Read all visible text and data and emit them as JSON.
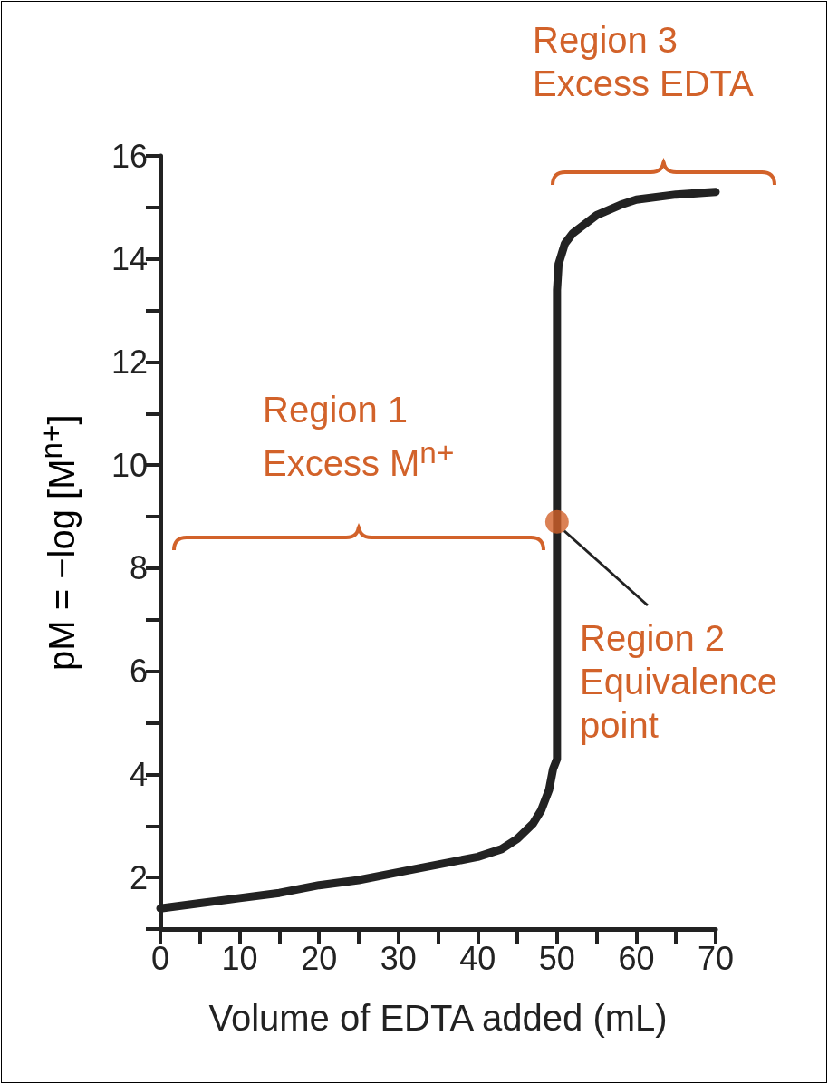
{
  "chart_data": {
    "type": "line",
    "xlabel": "Volume of EDTA added (mL)",
    "ylabel": "pM = −log [M$^{n+}$]",
    "xlim": [
      0,
      70
    ],
    "ylim": [
      1,
      16
    ],
    "xticks": [
      0,
      {
        "value": 5,
        "label": null
      },
      10,
      {
        "value": 15,
        "label": null
      },
      20,
      {
        "value": 25,
        "label": null
      },
      30,
      {
        "value": 35,
        "label": null
      },
      40,
      {
        "value": 45,
        "label": null
      },
      50,
      {
        "value": 55,
        "label": null
      },
      60,
      {
        "value": 65,
        "label": null
      },
      70
    ],
    "yticks": [
      2,
      {
        "value": 3,
        "label": null
      },
      4,
      {
        "value": 5,
        "label": null
      },
      6,
      {
        "value": 7,
        "label": null
      },
      8,
      {
        "value": 9,
        "label": null
      },
      10,
      {
        "value": 11,
        "label": null
      },
      12,
      {
        "value": 13,
        "label": null
      },
      14,
      {
        "value": 15,
        "label": null
      },
      16
    ],
    "grid": false,
    "series": [
      {
        "color": "#222222",
        "marker": "none",
        "x": [
          0,
          5,
          10,
          15,
          20,
          25,
          30,
          35,
          40,
          43,
          45,
          47,
          48,
          49,
          49.5,
          50,
          50,
          50.2,
          51,
          52,
          55,
          58,
          60,
          65,
          70
        ],
        "values": [
          1.4,
          1.5,
          1.6,
          1.7,
          1.85,
          1.95,
          2.1,
          2.25,
          2.4,
          2.55,
          2.75,
          3.05,
          3.3,
          3.7,
          4.1,
          4.3,
          13.4,
          13.9,
          14.3,
          14.5,
          14.85,
          15.05,
          15.15,
          15.25,
          15.3
        ]
      },
      {
        "type": "scatter",
        "color": "#d2622a",
        "marker": "circle",
        "x": [
          50
        ],
        "values": [
          8.9
        ]
      }
    ],
    "annotations": [
      "Region 1\nExcess M$^{n+}$",
      {
        "text": "Region 2\nEquivalence\npoint",
        "x": 50,
        "y": 8.9
      },
      "Region 3\nExcess EDTA"
    ]
  }
}
